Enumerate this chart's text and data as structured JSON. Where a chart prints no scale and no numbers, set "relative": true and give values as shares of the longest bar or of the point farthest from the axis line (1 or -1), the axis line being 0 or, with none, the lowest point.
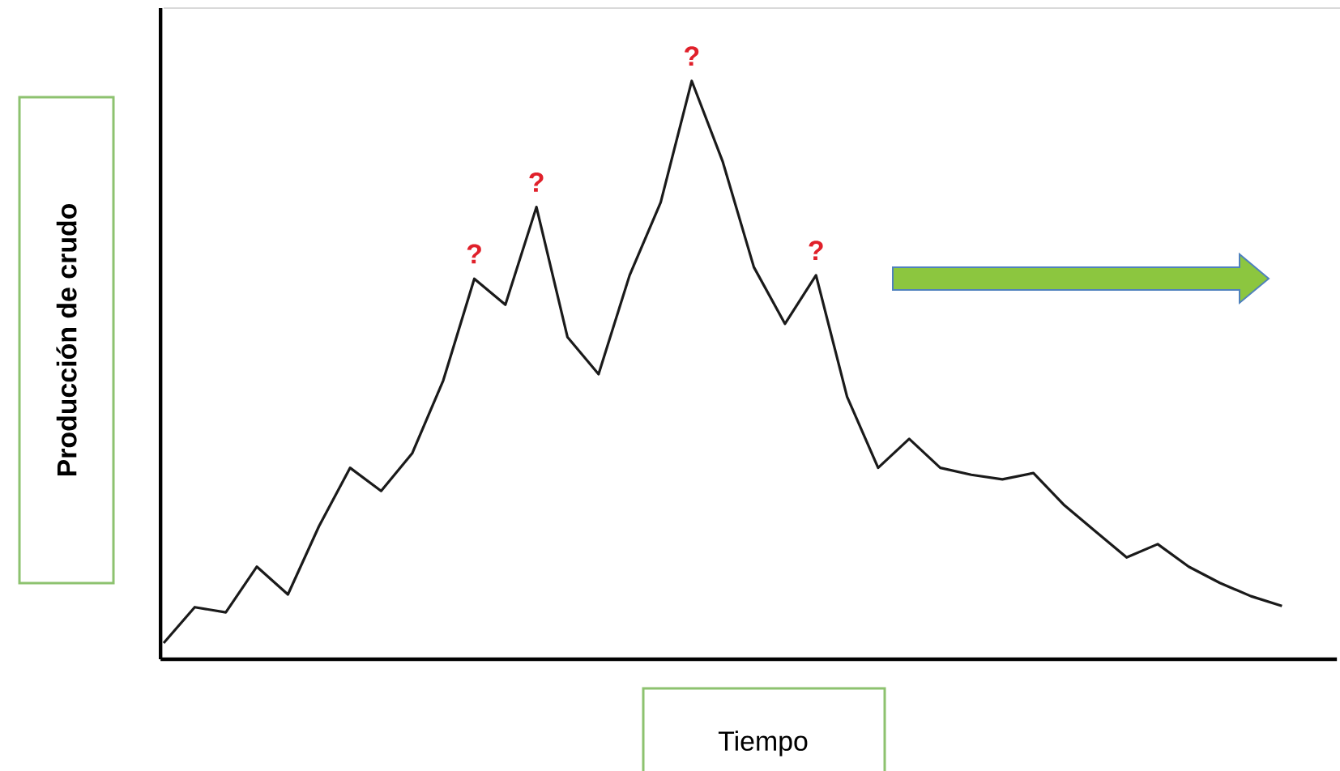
{
  "chart_data": {
    "type": "line",
    "relative": true,
    "xlabel": "Tiempo",
    "ylabel": "Producción de crudo",
    "categories": [
      null,
      null,
      null,
      null,
      null,
      null,
      null,
      null,
      null,
      null,
      null,
      null,
      null,
      null,
      null,
      null,
      null,
      null,
      null,
      null,
      null,
      null,
      null,
      null,
      null,
      null,
      null,
      null,
      null,
      null,
      null,
      null,
      null,
      null,
      null,
      null,
      null
    ],
    "series": [
      {
        "color": "#1a1a1a",
        "values": [
          0.028,
          0.09,
          0.081,
          0.16,
          0.112,
          0.23,
          0.331,
          0.291,
          0.356,
          0.482,
          0.658,
          0.613,
          0.782,
          0.557,
          0.493,
          0.664,
          0.79,
          1.0,
          0.86,
          0.678,
          0.58,
          0.664,
          0.454,
          0.331,
          0.381,
          0.331,
          0.319,
          0.311,
          0.322,
          0.266,
          0.221,
          0.176,
          0.199,
          0.16,
          0.132,
          0.109,
          0.092
        ]
      }
    ],
    "annotations": [
      "?",
      "?",
      "?",
      "?"
    ]
  }
}
